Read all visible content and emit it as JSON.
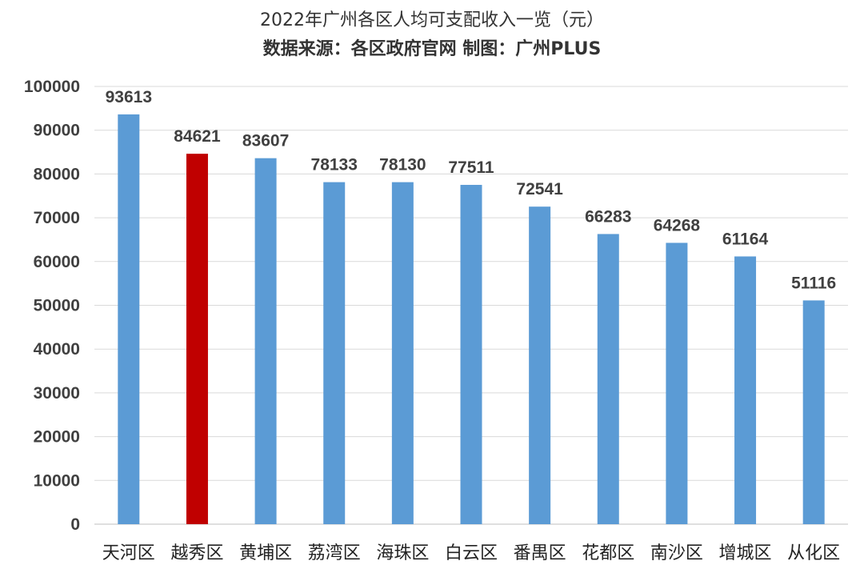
{
  "chart_data": {
    "type": "bar",
    "title": "2022年广州各区人均可支配收入一览（元）",
    "subtitle": "数据来源：各区政府官网  制图：广州PLUS",
    "categories": [
      "天河区",
      "越秀区",
      "黄埔区",
      "荔湾区",
      "海珠区",
      "白云区",
      "番禺区",
      "花都区",
      "南沙区",
      "增城区",
      "从化区"
    ],
    "values": [
      93613,
      84621,
      83607,
      78133,
      78130,
      77511,
      72541,
      66283,
      64268,
      61164,
      51116
    ],
    "yticks": [
      "0",
      "10000",
      "20000",
      "30000",
      "40000",
      "50000",
      "60000",
      "70000",
      "80000",
      "90000",
      "100000"
    ],
    "ylim": [
      0,
      100000
    ],
    "grid": true,
    "legend": "none",
    "colors": {
      "default_bar": "#5b9bd5",
      "highlight_bar": "#c00000",
      "highlight_category": "越秀区"
    }
  }
}
